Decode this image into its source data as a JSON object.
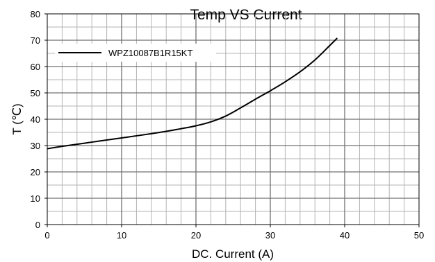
{
  "chart_data": {
    "type": "line",
    "title": "Temp  VS  Current",
    "xlabel": "DC. Current (A)",
    "ylabel": "T  (℃)",
    "xlim": [
      0,
      50
    ],
    "ylim": [
      0,
      80
    ],
    "x_major_ticks": [
      0,
      10,
      20,
      30,
      40,
      50
    ],
    "x_tick_labels": [
      "0",
      "10",
      "20",
      "30",
      "40",
      "50"
    ],
    "y_major_ticks": [
      0,
      10,
      20,
      30,
      40,
      50,
      60,
      70,
      80
    ],
    "y_tick_labels": [
      "0",
      "10",
      "20",
      "30",
      "40",
      "50",
      "60",
      "70",
      "80"
    ],
    "x_minor_step": 2,
    "y_minor_step": 5,
    "grid": true,
    "legend_position": "top-left",
    "series": [
      {
        "name": "WPZ10087B1R15KT",
        "color": "#000000",
        "x": [
          0,
          2,
          4,
          6,
          8,
          10,
          12,
          14,
          16,
          18,
          20,
          22,
          24,
          26,
          28,
          30,
          32,
          34,
          36,
          38,
          39
        ],
        "y": [
          28.8,
          29.7,
          30.5,
          31.3,
          32.1,
          32.9,
          33.7,
          34.5,
          35.4,
          36.4,
          37.5,
          39.0,
          41.2,
          44.3,
          47.6,
          50.8,
          54.2,
          58.0,
          62.5,
          68.0,
          70.8
        ]
      }
    ]
  }
}
